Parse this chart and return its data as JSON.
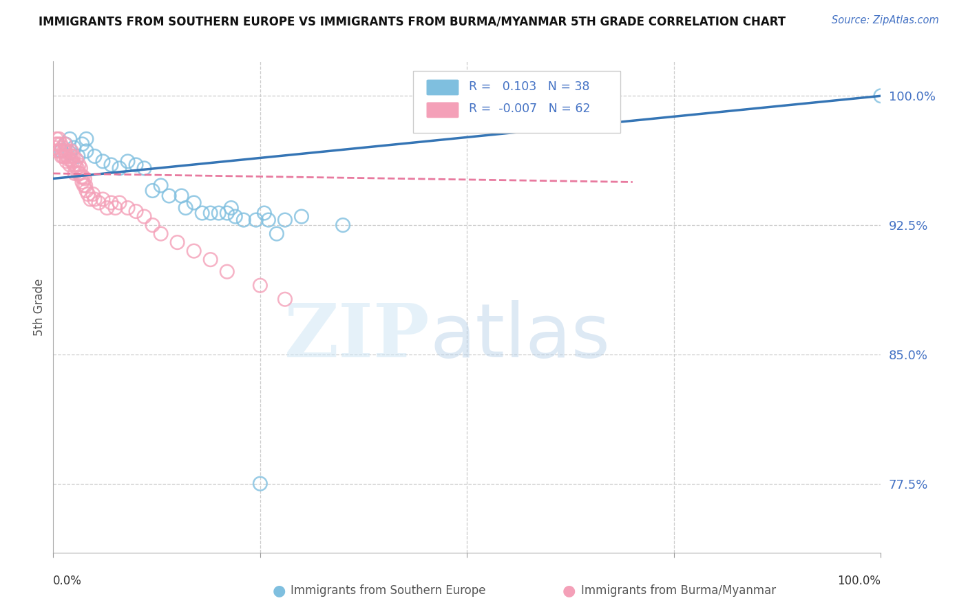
{
  "title": "IMMIGRANTS FROM SOUTHERN EUROPE VS IMMIGRANTS FROM BURMA/MYANMAR 5TH GRADE CORRELATION CHART",
  "source": "Source: ZipAtlas.com",
  "ylabel": "5th Grade",
  "legend_blue_r_val": "0.103",
  "legend_blue_n": "N = 38",
  "legend_pink_r_val": "-0.007",
  "legend_pink_n": "N = 62",
  "ytick_labels": [
    "100.0%",
    "92.5%",
    "85.0%",
    "77.5%"
  ],
  "ytick_values": [
    1.0,
    0.925,
    0.85,
    0.775
  ],
  "xlim": [
    0.0,
    1.0
  ],
  "ylim": [
    0.735,
    1.02
  ],
  "blue_color": "#7fbfdf",
  "pink_color": "#f4a0b8",
  "blue_line_color": "#3575b5",
  "pink_line_color": "#e87a9f",
  "blue_scatter_x": [
    0.01,
    0.015,
    0.02,
    0.02,
    0.025,
    0.03,
    0.035,
    0.04,
    0.04,
    0.05,
    0.06,
    0.07,
    0.08,
    0.09,
    0.1,
    0.11,
    0.12,
    0.13,
    0.14,
    0.155,
    0.16,
    0.17,
    0.18,
    0.19,
    0.2,
    0.21,
    0.215,
    0.22,
    0.23,
    0.245,
    0.255,
    0.26,
    0.27,
    0.28,
    0.3,
    0.35,
    0.25,
    1.0
  ],
  "blue_scatter_y": [
    0.968,
    0.972,
    0.967,
    0.975,
    0.97,
    0.965,
    0.972,
    0.975,
    0.968,
    0.965,
    0.962,
    0.96,
    0.958,
    0.962,
    0.96,
    0.958,
    0.945,
    0.948,
    0.942,
    0.942,
    0.935,
    0.938,
    0.932,
    0.932,
    0.932,
    0.932,
    0.935,
    0.93,
    0.928,
    0.928,
    0.932,
    0.928,
    0.92,
    0.928,
    0.93,
    0.925,
    0.775,
    1.0
  ],
  "pink_scatter_x": [
    0.002,
    0.003,
    0.004,
    0.005,
    0.006,
    0.007,
    0.008,
    0.009,
    0.01,
    0.011,
    0.012,
    0.013,
    0.014,
    0.015,
    0.015,
    0.016,
    0.017,
    0.018,
    0.019,
    0.02,
    0.021,
    0.022,
    0.022,
    0.023,
    0.024,
    0.025,
    0.026,
    0.027,
    0.028,
    0.029,
    0.03,
    0.031,
    0.032,
    0.033,
    0.034,
    0.035,
    0.036,
    0.037,
    0.038,
    0.039,
    0.04,
    0.042,
    0.045,
    0.048,
    0.05,
    0.055,
    0.06,
    0.065,
    0.07,
    0.075,
    0.08,
    0.09,
    0.1,
    0.11,
    0.12,
    0.13,
    0.15,
    0.17,
    0.19,
    0.21,
    0.25,
    0.28
  ],
  "pink_scatter_y": [
    0.97,
    0.972,
    0.975,
    0.968,
    0.972,
    0.975,
    0.968,
    0.972,
    0.965,
    0.97,
    0.965,
    0.968,
    0.972,
    0.965,
    0.968,
    0.962,
    0.965,
    0.968,
    0.963,
    0.96,
    0.963,
    0.965,
    0.968,
    0.962,
    0.965,
    0.96,
    0.955,
    0.96,
    0.963,
    0.958,
    0.955,
    0.96,
    0.955,
    0.958,
    0.953,
    0.95,
    0.953,
    0.948,
    0.952,
    0.948,
    0.945,
    0.943,
    0.94,
    0.943,
    0.94,
    0.938,
    0.94,
    0.935,
    0.938,
    0.935,
    0.938,
    0.935,
    0.933,
    0.93,
    0.925,
    0.92,
    0.915,
    0.91,
    0.905,
    0.898,
    0.89,
    0.882
  ],
  "blue_line_x0": 0.0,
  "blue_line_y0": 0.952,
  "blue_line_x1": 1.0,
  "blue_line_y1": 1.0,
  "pink_line_x0": 0.0,
  "pink_line_y0": 0.955,
  "pink_line_x1": 0.7,
  "pink_line_y1": 0.95
}
